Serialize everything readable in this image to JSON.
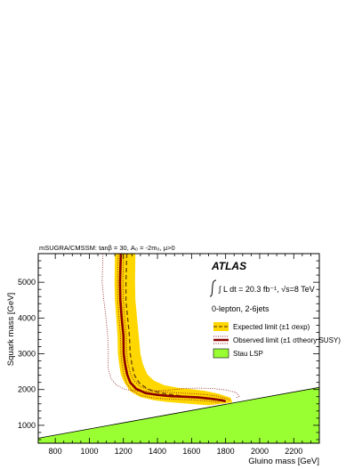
{
  "chart_data": {
    "type": "line",
    "title": "mSUGRA/CMSSM: tanβ = 30, A₀ = -2m₀, μ>0",
    "xlabel": "Gluino mass [GeV]",
    "ylabel": "Squark mass [GeV]",
    "xlim": [
      700,
      2350
    ],
    "ylim": [
      500,
      5800
    ],
    "x_ticks": [
      800,
      1000,
      1200,
      1400,
      1600,
      1800,
      2000,
      2200
    ],
    "y_ticks": [
      1000,
      2000,
      3000,
      4000,
      5000
    ],
    "grid": false,
    "legend_position": "right",
    "annotations": {
      "experiment": "ATLAS",
      "lumi": "∫ L dt = 20.3 fb⁻¹, √s=8 TeV",
      "channel": "0-lepton, 2-6jets"
    },
    "legend": [
      {
        "label": "Expected limit (±1 σexp)",
        "style": "yellow band with dashed line"
      },
      {
        "label": "Observed limit (±1 σtheory SUSY)",
        "style": "dark red solid line with dotted lines"
      },
      {
        "label": "Stau LSP",
        "style": "green filled region"
      }
    ],
    "colors": {
      "band": "#ffd700",
      "observed": "#8b0000",
      "stau": "#99ff33",
      "dotted": "#8b1a1a",
      "expected": "#6b4400"
    },
    "series": [
      {
        "name": "Expected limit",
        "points": [
          [
            1220,
            5800
          ],
          [
            1215,
            5000
          ],
          [
            1215,
            4500
          ],
          [
            1225,
            4000
          ],
          [
            1235,
            3500
          ],
          [
            1240,
            3000
          ],
          [
            1250,
            2700
          ],
          [
            1265,
            2400
          ],
          [
            1290,
            2200
          ],
          [
            1340,
            2020
          ],
          [
            1400,
            1920
          ],
          [
            1480,
            1860
          ],
          [
            1560,
            1810
          ],
          [
            1640,
            1770
          ],
          [
            1720,
            1720
          ],
          [
            1790,
            1670
          ]
        ]
      },
      {
        "name": "Expected band upper",
        "points": [
          [
            1270,
            5800
          ],
          [
            1268,
            5000
          ],
          [
            1270,
            4500
          ],
          [
            1280,
            4000
          ],
          [
            1290,
            3500
          ],
          [
            1300,
            3000
          ],
          [
            1315,
            2700
          ],
          [
            1340,
            2420
          ],
          [
            1380,
            2250
          ],
          [
            1440,
            2120
          ],
          [
            1520,
            2050
          ],
          [
            1600,
            2010
          ],
          [
            1680,
            1960
          ],
          [
            1760,
            1880
          ],
          [
            1830,
            1770
          ],
          [
            1840,
            1640
          ]
        ]
      },
      {
        "name": "Expected band lower",
        "points": [
          [
            1150,
            5800
          ],
          [
            1148,
            5000
          ],
          [
            1150,
            4500
          ],
          [
            1158,
            4000
          ],
          [
            1165,
            3500
          ],
          [
            1168,
            3000
          ],
          [
            1175,
            2700
          ],
          [
            1185,
            2420
          ],
          [
            1205,
            2200
          ],
          [
            1240,
            1950
          ],
          [
            1300,
            1790
          ],
          [
            1380,
            1700
          ],
          [
            1460,
            1650
          ],
          [
            1540,
            1620
          ],
          [
            1620,
            1590
          ],
          [
            1700,
            1560
          ]
        ]
      },
      {
        "name": "Observed limit",
        "points": [
          [
            1185,
            5800
          ],
          [
            1180,
            5000
          ],
          [
            1182,
            4500
          ],
          [
            1190,
            4000
          ],
          [
            1200,
            3500
          ],
          [
            1202,
            3000
          ],
          [
            1210,
            2700
          ],
          [
            1222,
            2420
          ],
          [
            1240,
            2200
          ],
          [
            1275,
            2020
          ],
          [
            1330,
            1900
          ],
          [
            1400,
            1850
          ],
          [
            1480,
            1815
          ],
          [
            1560,
            1800
          ],
          [
            1640,
            1780
          ],
          [
            1720,
            1740
          ],
          [
            1780,
            1700
          ],
          [
            1800,
            1670
          ]
        ]
      },
      {
        "name": "Observed +1 sigma theory",
        "points": [
          [
            1200,
            5800
          ],
          [
            1197,
            5000
          ],
          [
            1199,
            4500
          ],
          [
            1207,
            4000
          ],
          [
            1217,
            3500
          ],
          [
            1220,
            3000
          ],
          [
            1228,
            2700
          ],
          [
            1242,
            2440
          ],
          [
            1262,
            2250
          ],
          [
            1300,
            2080
          ],
          [
            1360,
            1980
          ],
          [
            1440,
            1935
          ],
          [
            1520,
            1905
          ],
          [
            1600,
            1885
          ],
          [
            1680,
            1860
          ],
          [
            1755,
            1815
          ],
          [
            1810,
            1740
          ],
          [
            1830,
            1690
          ]
        ]
      },
      {
        "name": "Observed -1 sigma theory",
        "points": [
          [
            1170,
            5800
          ],
          [
            1165,
            5000
          ],
          [
            1167,
            4500
          ],
          [
            1174,
            4000
          ],
          [
            1183,
            3500
          ],
          [
            1185,
            3000
          ],
          [
            1192,
            2700
          ],
          [
            1204,
            2400
          ],
          [
            1220,
            2160
          ],
          [
            1252,
            1960
          ],
          [
            1305,
            1830
          ],
          [
            1370,
            1770
          ],
          [
            1450,
            1740
          ],
          [
            1530,
            1725
          ],
          [
            1610,
            1710
          ],
          [
            1690,
            1680
          ],
          [
            1760,
            1640
          ]
        ]
      },
      {
        "name": "Outer envelope",
        "points": [
          [
            1080,
            5800
          ],
          [
            1075,
            5000
          ],
          [
            1085,
            4500
          ],
          [
            1098,
            4000
          ],
          [
            1108,
            3500
          ],
          [
            1112,
            3000
          ],
          [
            1110,
            2600
          ],
          [
            1128,
            2300
          ],
          [
            1160,
            2120
          ],
          [
            1210,
            2000
          ],
          [
            1300,
            1950
          ],
          [
            1400,
            1960
          ],
          [
            1480,
            1990
          ],
          [
            1560,
            2030
          ],
          [
            1640,
            2040
          ],
          [
            1720,
            2030
          ],
          [
            1800,
            1990
          ],
          [
            1860,
            1920
          ],
          [
            1880,
            1820
          ],
          [
            1860,
            1760
          ]
        ]
      }
    ],
    "stau_lsp_boundary": [
      [
        700,
        640
      ],
      [
        2350,
        2060
      ]
    ]
  }
}
